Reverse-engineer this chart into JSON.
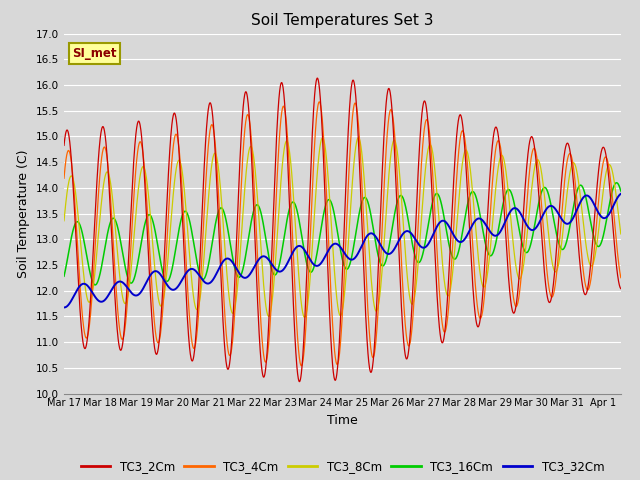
{
  "title": "Soil Temperatures Set 3",
  "xlabel": "Time",
  "ylabel": "Soil Temperature (C)",
  "ylim": [
    10.0,
    17.0
  ],
  "yticks": [
    10.0,
    10.5,
    11.0,
    11.5,
    12.0,
    12.5,
    13.0,
    13.5,
    14.0,
    14.5,
    15.0,
    15.5,
    16.0,
    16.5,
    17.0
  ],
  "xtick_labels": [
    "Mar 17",
    "Mar 18",
    "Mar 19",
    "Mar 20",
    "Mar 21",
    "Mar 22",
    "Mar 23",
    "Mar 24",
    "Mar 25",
    "Mar 26",
    "Mar 27",
    "Mar 28",
    "Mar 29",
    "Mar 30",
    "Mar 31",
    "Apr 1"
  ],
  "series_colors": {
    "TC3_2Cm": "#cc0000",
    "TC3_4Cm": "#ff6600",
    "TC3_8Cm": "#cccc00",
    "TC3_16Cm": "#00cc00",
    "TC3_32Cm": "#0000cc"
  },
  "legend_label": "SI_met",
  "background_color": "#d8d8d8",
  "plot_bg_color": "#d8d8d8",
  "grid_color": "#c0c0c0",
  "n_days": 15.5,
  "points_per_day": 144
}
